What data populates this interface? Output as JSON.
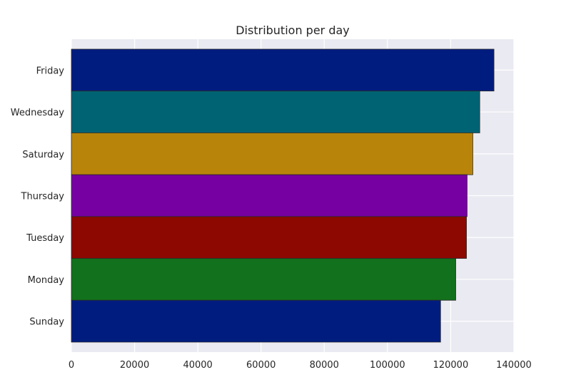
{
  "chart_data": {
    "type": "bar",
    "orientation": "horizontal",
    "title": "Distribution per day",
    "xlabel": "",
    "ylabel": "",
    "categories": [
      "Friday",
      "Wednesday",
      "Saturday",
      "Thursday",
      "Tuesday",
      "Monday",
      "Sunday"
    ],
    "values": [
      133700,
      129200,
      127000,
      125200,
      125000,
      121600,
      116800
    ],
    "colors": [
      "#001c7f",
      "#006374",
      "#b8850a",
      "#7600a1",
      "#8c0800",
      "#12711c",
      "#001c7f"
    ],
    "xlim": [
      0,
      140000
    ],
    "xticks": [
      "0",
      "20000",
      "40000",
      "60000",
      "80000",
      "100000",
      "120000",
      "140000"
    ],
    "grid": true,
    "background": "#eaeaf2"
  }
}
